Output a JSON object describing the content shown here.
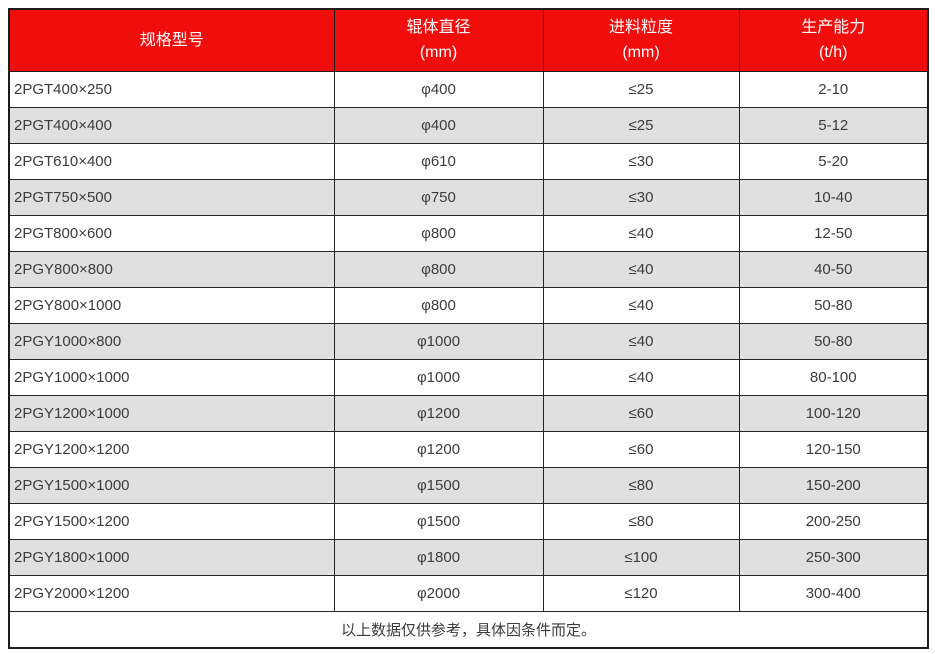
{
  "table": {
    "columns": [
      {
        "label": "规格型号",
        "sub": ""
      },
      {
        "label": "辊体直径",
        "sub": "(mm)"
      },
      {
        "label": "进料粒度",
        "sub": "(mm)"
      },
      {
        "label": "生产能力",
        "sub": "(t/h)"
      }
    ],
    "rows": [
      [
        "2PGT400×250",
        "φ400",
        "≤25",
        "2-10"
      ],
      [
        "2PGT400×400",
        "φ400",
        "≤25",
        "5-12"
      ],
      [
        "2PGT610×400",
        "φ610",
        "≤30",
        "5-20"
      ],
      [
        "2PGT750×500",
        "φ750",
        "≤30",
        "10-40"
      ],
      [
        "2PGT800×600",
        "φ800",
        "≤40",
        "12-50"
      ],
      [
        "2PGY800×800",
        "φ800",
        "≤40",
        "40-50"
      ],
      [
        "2PGY800×1000",
        "φ800",
        "≤40",
        "50-80"
      ],
      [
        "2PGY1000×800",
        "φ1000",
        "≤40",
        "50-80"
      ],
      [
        "2PGY1000×1000",
        "φ1000",
        "≤40",
        "80-100"
      ],
      [
        "2PGY1200×1000",
        "φ1200",
        "≤60",
        "100-120"
      ],
      [
        "2PGY1200×1200",
        "φ1200",
        "≤60",
        "120-150"
      ],
      [
        "2PGY1500×1000",
        "φ1500",
        "≤80",
        "150-200"
      ],
      [
        "2PGY1500×1200",
        "φ1500",
        "≤80",
        "200-250"
      ],
      [
        "2PGY1800×1000",
        "φ1800",
        "≤100",
        "250-300"
      ],
      [
        "2PGY2000×1200",
        "φ2000",
        "≤120",
        "300-400"
      ]
    ],
    "footnote": "以上数据仅供参考，具体因条件而定。"
  },
  "colors": {
    "header_bg": "#f20d0d",
    "header_text": "#ffffff",
    "row_bg": "#ffffff",
    "row_alt_bg": "#e0e0e0",
    "body_text": "#3c3c3c",
    "border": "#1c1c1c"
  }
}
